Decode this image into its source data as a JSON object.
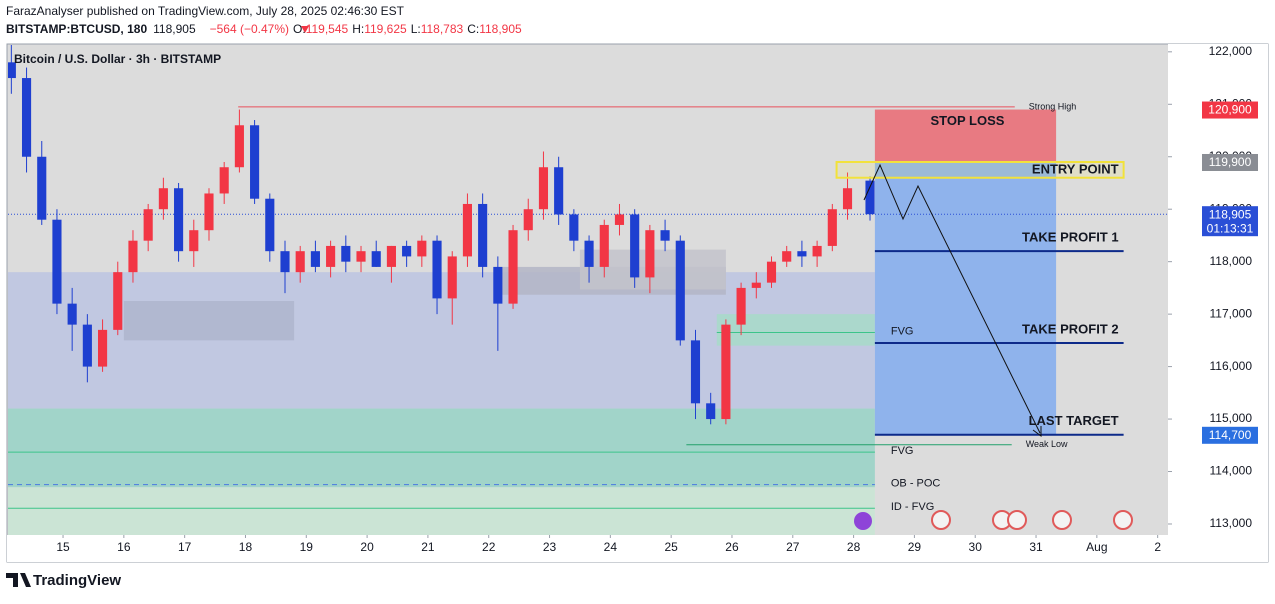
{
  "header": {
    "published": "FarazAnalyser published on TradingView.com, July 28, 2025 02:46:30 EST",
    "symbol": "BITSTAMP:BTCUSD, 180",
    "price": "118,905",
    "change": "−564 (−0.47%)",
    "ohlc": [
      {
        "label": "O:",
        "value": "119,545"
      },
      {
        "label": "H:",
        "value": "119,625"
      },
      {
        "label": "L:",
        "value": "118,783"
      },
      {
        "label": "C:",
        "value": "118,905"
      }
    ]
  },
  "chart_data": {
    "type": "candlestick",
    "title": "Bitcoin / U.S. Dollar · 3h · BITSTAMP",
    "up_color": "#f23645",
    "down_color": "#1e3fd0",
    "x": [
      14.15,
      14.4,
      14.65,
      14.9,
      15.15,
      15.4,
      15.65,
      15.9,
      16.15,
      16.4,
      16.65,
      16.9,
      17.15,
      17.4,
      17.65,
      17.9,
      18.15,
      18.4,
      18.65,
      18.9,
      19.15,
      19.4,
      19.65,
      19.9,
      20.15,
      20.4,
      20.65,
      20.9,
      21.15,
      21.4,
      21.65,
      21.9,
      22.15,
      22.4,
      22.65,
      22.9,
      23.15,
      23.4,
      23.65,
      23.9,
      24.15,
      24.4,
      24.65,
      24.9,
      25.15,
      25.4,
      25.65,
      25.9,
      26.15,
      26.4,
      26.65,
      26.9,
      27.15,
      27.4,
      27.65,
      27.9,
      28.27
    ],
    "open": [
      121800,
      121500,
      120000,
      118800,
      117200,
      116800,
      116000,
      116700,
      117800,
      118400,
      119000,
      119400,
      118200,
      118600,
      119300,
      119800,
      120600,
      119200,
      118200,
      117800,
      118200,
      117900,
      118300,
      118000,
      118200,
      117900,
      118300,
      118100,
      118400,
      117300,
      118100,
      119100,
      117900,
      117200,
      118600,
      119000,
      119800,
      118900,
      118400,
      117900,
      118700,
      118900,
      117700,
      118600,
      118400,
      116500,
      115300,
      115000,
      116800,
      117500,
      117600,
      118000,
      118200,
      118100,
      118300,
      119000,
      119545
    ],
    "high": [
      122300,
      121700,
      120300,
      119000,
      117500,
      117000,
      116900,
      118000,
      118600,
      119100,
      119600,
      119500,
      118800,
      119400,
      119900,
      120900,
      120700,
      119300,
      118400,
      118300,
      118400,
      118400,
      118500,
      118300,
      118400,
      118300,
      118400,
      118500,
      118500,
      118200,
      119300,
      119300,
      118100,
      118700,
      119200,
      120100,
      120000,
      119000,
      118500,
      118800,
      119100,
      119000,
      118700,
      118800,
      118500,
      116700,
      115500,
      116900,
      117600,
      117800,
      118100,
      118300,
      118400,
      118400,
      119100,
      119700,
      119625
    ],
    "low": [
      121200,
      119700,
      118700,
      117000,
      116300,
      115700,
      115900,
      116600,
      117600,
      118200,
      118800,
      118000,
      117900,
      118400,
      119100,
      119700,
      119100,
      118000,
      117400,
      117600,
      117800,
      117700,
      117800,
      117800,
      117900,
      117600,
      117900,
      117900,
      117000,
      116800,
      117900,
      117700,
      116300,
      117100,
      118400,
      118800,
      118700,
      118200,
      117600,
      117700,
      118500,
      117500,
      117400,
      118200,
      116400,
      115000,
      114900,
      114900,
      116600,
      117300,
      117500,
      117900,
      117900,
      117900,
      118200,
      118800,
      118783
    ],
    "close": [
      121500,
      120000,
      118800,
      117200,
      116800,
      116000,
      116700,
      117800,
      118400,
      119000,
      119400,
      118200,
      118600,
      119300,
      119800,
      120600,
      119200,
      118200,
      117800,
      118200,
      117900,
      118300,
      118000,
      118200,
      117900,
      118300,
      118100,
      118400,
      117300,
      118100,
      119100,
      117900,
      117200,
      118600,
      119000,
      119800,
      118900,
      118400,
      117900,
      118700,
      118900,
      117700,
      118600,
      118400,
      116500,
      115300,
      115000,
      116800,
      117500,
      117600,
      118000,
      118200,
      118100,
      118300,
      119000,
      119400,
      118905
    ],
    "xlim": [
      14.095,
      33.17
    ],
    "ylim": [
      112790,
      122130
    ],
    "xticks": [
      15,
      16,
      17,
      18,
      19,
      20,
      21,
      22,
      23,
      24,
      25,
      26,
      27,
      28,
      29,
      30,
      31,
      {
        "value": 32,
        "label": "Aug"
      },
      {
        "value": 33,
        "label": "2"
      }
    ],
    "yticks": [
      {
        "value": 113000,
        "label": "113,000"
      },
      {
        "value": 114000,
        "label": "114,000"
      },
      {
        "value": 115000,
        "label": "115,000"
      },
      {
        "value": 116000,
        "label": "116,000"
      },
      {
        "value": 117000,
        "label": "117,000"
      },
      {
        "value": 118000,
        "label": "118,000"
      },
      {
        "value": 119000,
        "label": "119,000"
      },
      {
        "value": 120000,
        "label": "120,000"
      },
      {
        "value": 121000,
        "label": "121,000"
      },
      {
        "value": 122000,
        "label": "122,000"
      }
    ],
    "last_price": {
      "value": 118905,
      "label": "118,905",
      "countdown": "01:13:31"
    },
    "zones": [
      {
        "range": [
          115200,
          117800
        ],
        "x": [
          14.095,
          28.35
        ],
        "color": "#bcc4e2"
      },
      {
        "range": [
          113700,
          115200
        ],
        "x": [
          14.095,
          28.35
        ],
        "color": "#97d2c6"
      },
      {
        "range": [
          112790,
          113700
        ],
        "x": [
          14.095,
          28.35
        ],
        "color": "#c8e5d3"
      },
      {
        "range": [
          116400,
          117000
        ],
        "x": [
          25.75,
          28.35
        ],
        "color": "#a7dac8"
      },
      {
        "range": [
          116500,
          117250
        ],
        "x": [
          16.0,
          18.8
        ],
        "color": "#aeb5cc"
      },
      {
        "range": [
          117370,
          117900
        ],
        "x": [
          22.1,
          25.9
        ],
        "color": "#b3b5c6"
      },
      {
        "range": [
          117470,
          118230
        ],
        "x": [
          23.5,
          25.9
        ],
        "color": "#c3c3cb"
      }
    ],
    "levels": [
      {
        "label": "Strong High",
        "value": 120950,
        "x": [
          17.88,
          30.65
        ],
        "color": "#e8505b",
        "dash": false
      },
      {
        "label": "Weak Low",
        "value": 114510,
        "x": [
          25.25,
          30.6
        ],
        "color": "#22a06b",
        "dash": false
      },
      {
        "label": "FVG",
        "value": 116650,
        "x": [
          25.75,
          28.35
        ],
        "color": "#3cc48a",
        "dash": false
      },
      {
        "label": "FVG",
        "value": 114370,
        "x": [
          14.095,
          28.35
        ],
        "color": "#3cc48a",
        "dash": false
      },
      {
        "label": "OB - POC",
        "value": 113750,
        "x": [
          14.095,
          28.35
        ],
        "color": "#4a78e0",
        "dash": true
      },
      {
        "label": "ID - FVG",
        "value": 113300,
        "x": [
          14.095,
          28.35
        ],
        "color": "#3cc48a",
        "dash": false
      }
    ],
    "trade": {
      "x": [
        28.35,
        31.33
      ],
      "target_x_end": 32.44,
      "entry_x_start": 27.72,
      "stop_loss": {
        "label": "STOP LOSS",
        "value": 120900,
        "price_label": "120,900"
      },
      "entry": {
        "label": "ENTRY POINT",
        "value": 119900,
        "zone": [
          119600,
          119900
        ],
        "price_label": "119,900"
      },
      "targets": [
        {
          "label": "TAKE PROFIT 1",
          "value": 118200
        },
        {
          "label": "TAKE PROFIT 2",
          "value": 116450
        },
        {
          "label": "LAST TARGET",
          "value": 114700,
          "price_label": "114,700"
        }
      ]
    }
  },
  "footer": {
    "brand": "TradingView"
  }
}
